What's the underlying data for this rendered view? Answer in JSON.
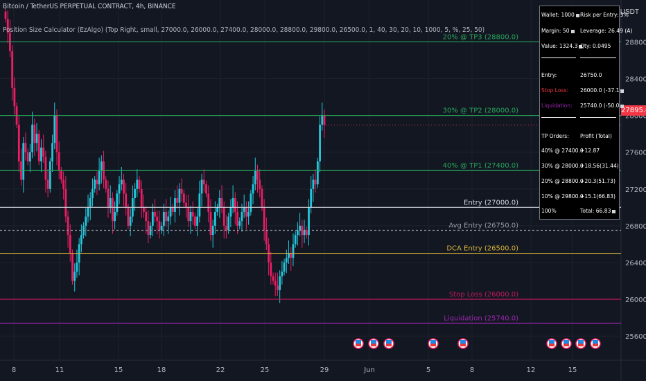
{
  "header": {
    "title": "Bitcoin / TetherUS PERPETUAL CONTRACT, 4h, BINANCE",
    "indicator": "Position Size Calculator (EzAlgo) (Top Right, small, 27000.0, 26000.0, 27400.0, 28000.0, 28800.0, 29800.0, 26500.0, 1, 40, 30, 20, 10, 1000, 5, %, 25, 50)",
    "unit": "USDT"
  },
  "price_axis": {
    "ticks": [
      "28800.0",
      "28400.0",
      "28000.0",
      "27600.0",
      "27200.0",
      "26800.0",
      "26400.0",
      "26000.0",
      "25600.0"
    ],
    "current_price": "27895.0",
    "current_price_color": "#f23645"
  },
  "time_axis": {
    "labels": [
      "8",
      "11",
      "15",
      "18",
      "22",
      "25",
      "29",
      "Jun",
      "5",
      "8",
      "12",
      "15"
    ]
  },
  "levels": [
    {
      "label": "20% @ TP3 (28800.0)",
      "value": 28800.0,
      "color": "#26a65b"
    },
    {
      "label": "30% @ TP2 (28000.0)",
      "value": 28000.0,
      "color": "#26a65b"
    },
    {
      "label": "40% @ TP1 (27400.0)",
      "value": 27400.0,
      "color": "#26a65b"
    },
    {
      "label": "Entry (27000.0)",
      "value": 27000.0,
      "color": "#d1d4dc"
    },
    {
      "label": "Avg Entry (26750.0)",
      "value": 26750.0,
      "color": "#9598a1",
      "dashed": true
    },
    {
      "label": "DCA Entry (26500.0)",
      "value": 26500.0,
      "color": "#d6b43a"
    },
    {
      "label": "Stop Loss (26000.0)",
      "value": 26000.0,
      "color": "#c2185b"
    },
    {
      "label": "Liquidation (25740.0)",
      "value": 25740.0,
      "color": "#9c27b0"
    }
  ],
  "panel": {
    "wallet": "Wallet: 1000",
    "risk": "Risk per Entry: 5%",
    "margin": "Margin: 50",
    "leverage": "Leverage: 26.49 (A)",
    "value": "Value: 1324.3",
    "qty": "Qty: 0.0495",
    "entry_label": "Entry:",
    "entry_value": "26750.0",
    "stop_label": "Stop Loss:",
    "stop_value": "26000.0 (-37.1",
    "liq_label": "Liquidation:",
    "liq_value": "25740.0 (-50.0",
    "tp_header": "TP Orders:",
    "profit_header": "Profit (Total)",
    "tp_rows": [
      {
        "order": "40% @ 27400.0",
        "profit": "+12.87"
      },
      {
        "order": "30% @ 28000.0",
        "profit": "+18.56(31.44)"
      },
      {
        "order": "20% @ 28800.0",
        "profit": "+20.3(51.73)"
      },
      {
        "order": "10% @ 29800.0",
        "profit": "+15.1(66.83)"
      }
    ],
    "total_order": "100%",
    "total_profit": "Total: 66.83"
  },
  "colors": {
    "background": "#131722",
    "candle_up": "#26c6da",
    "candle_down": "#e91e63"
  },
  "icons": [
    "flag-icon",
    "flag-icon",
    "flag-icon",
    "flag-icon",
    "flag-icon",
    "flag-icon",
    "flag-icon",
    "flag-icon",
    "flag-icon"
  ],
  "chart_data": {
    "type": "candlestick",
    "title": "Bitcoin / TetherUS PERPETUAL CONTRACT, 4h, BINANCE",
    "ylabel": "USDT",
    "ylim": [
      25450,
      29150
    ],
    "x_tick_labels": [
      "8",
      "11",
      "15",
      "18",
      "22",
      "25",
      "29",
      "Jun",
      "5",
      "8",
      "12",
      "15"
    ],
    "closes": [
      29050,
      28900,
      28700,
      28300,
      28100,
      27900,
      27500,
      27300,
      27700,
      27600,
      27500,
      27600,
      27900,
      27700,
      27800,
      27500,
      27650,
      27550,
      27300,
      27200,
      27500,
      27700,
      28000,
      27600,
      27400,
      27300,
      27200,
      26900,
      26700,
      26500,
      26200,
      26300,
      26400,
      26600,
      26700,
      26800,
      26900,
      27000,
      27100,
      27200,
      27300,
      27250,
      27400,
      27500,
      27300,
      27200,
      27000,
      27100,
      26850,
      26950,
      27150,
      27250,
      27300,
      27150,
      27000,
      26800,
      26900,
      27100,
      27200,
      27300,
      27200,
      27000,
      26950,
      26850,
      26700,
      26800,
      26950,
      26900,
      26850,
      26750,
      26800,
      26950,
      26850,
      26900,
      27000,
      26950,
      27100,
      27050,
      27200,
      27150,
      27050,
      27000,
      26850,
      26950,
      26900,
      26800,
      26900,
      27150,
      27300,
      27250,
      27150,
      26950,
      26700,
      26800,
      26950,
      27000,
      27100,
      27000,
      26800,
      26750,
      26900,
      27000,
      27100,
      26950,
      26800,
      26850,
      26950,
      27000,
      26900,
      26950,
      27150,
      27250,
      27400,
      27300,
      27200,
      27000,
      26750,
      26600,
      26400,
      26250,
      26200,
      26150,
      26100,
      26250,
      26300,
      26400,
      26450,
      26500,
      26450,
      26600,
      26700,
      26750,
      26800,
      26700,
      26750,
      26700,
      27000,
      27200,
      27300,
      27250,
      27500,
      27900,
      28000,
      27895
    ]
  }
}
